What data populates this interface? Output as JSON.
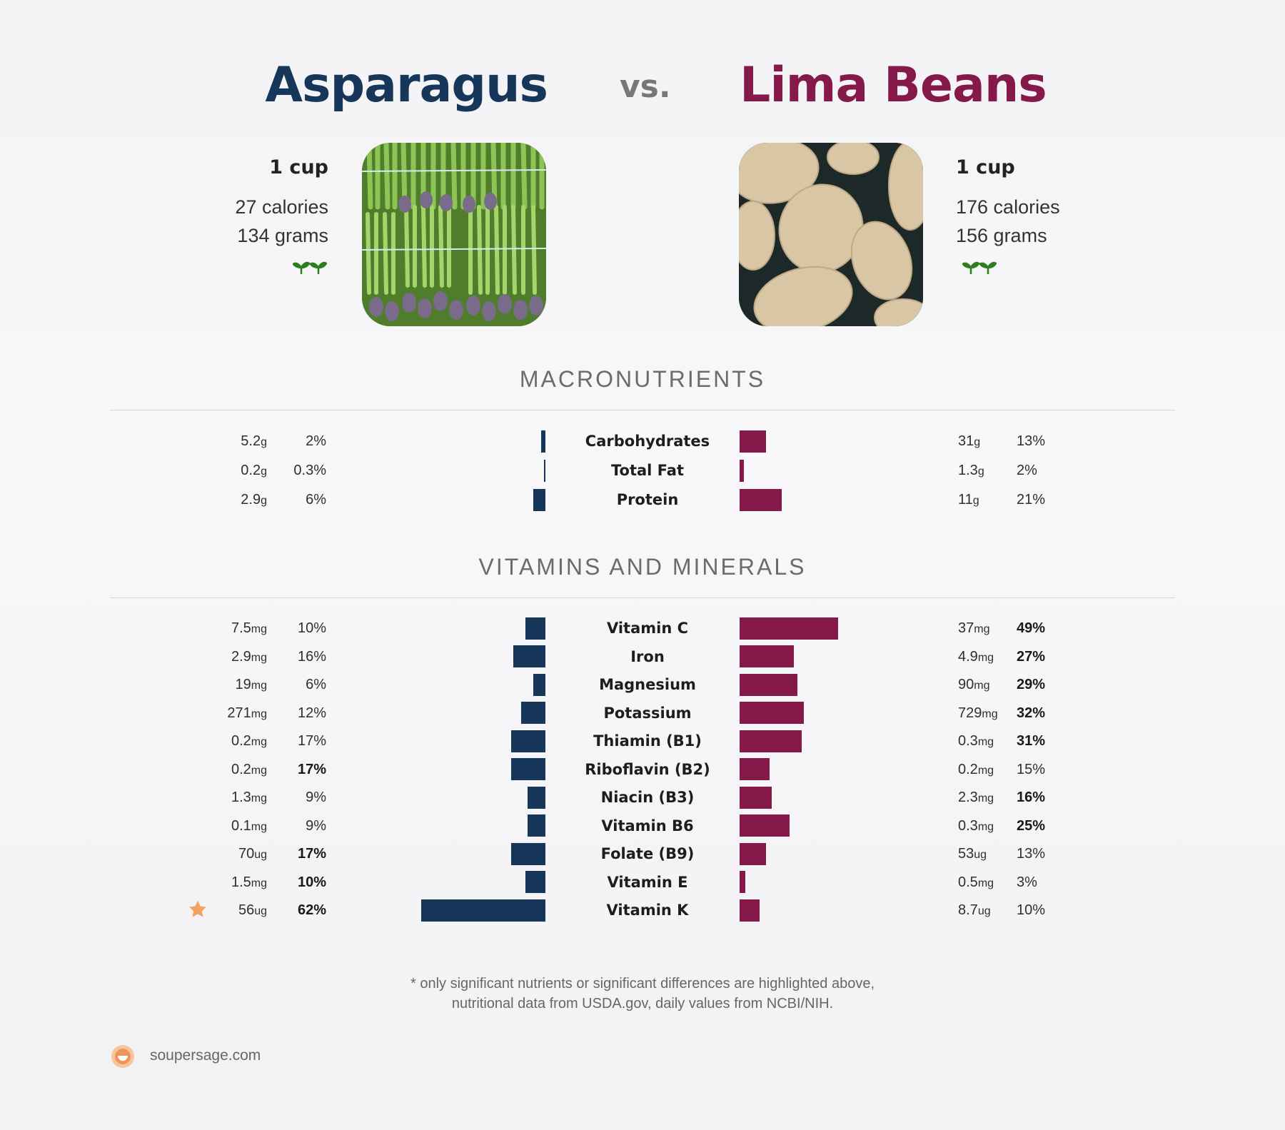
{
  "header": {
    "food_left": "Asparagus",
    "vs": "vs.",
    "food_right": "Lima Beans"
  },
  "left_summary": {
    "serving": "1 cup",
    "calories": "27 calories",
    "weight": "134 grams",
    "icon": "plant-sprouts-icon"
  },
  "right_summary": {
    "serving": "1 cup",
    "calories": "176 calories",
    "weight": "156 grams",
    "icon": "plant-sprouts-icon"
  },
  "colors": {
    "left": "#16365a",
    "right": "#851a4a",
    "star": "#f4a261",
    "sprout": "#2e7d1f"
  },
  "sections": {
    "macros": "MACRONUTRIENTS",
    "vitamins": "VITAMINS AND MINERALS"
  },
  "chart_data": [
    {
      "type": "bar",
      "orientation": "diverging-horizontal",
      "section": "MACRONUTRIENTS",
      "categories": [
        "Carbohydrates",
        "Total Fat",
        "Protein"
      ],
      "series": [
        {
          "name": "Asparagus",
          "amounts": [
            "5.2",
            "0.2",
            "2.9"
          ],
          "units": [
            "g",
            "g",
            "g"
          ],
          "percent_labels": [
            "2%",
            "0.3%",
            "6%"
          ],
          "values": [
            2,
            0.3,
            6
          ],
          "bold": [
            false,
            false,
            false
          ]
        },
        {
          "name": "Lima Beans",
          "amounts": [
            "31",
            "1.3",
            "11"
          ],
          "units": [
            "g",
            "g",
            "g"
          ],
          "percent_labels": [
            "13%",
            "2%",
            "21%"
          ],
          "values": [
            13,
            2,
            21
          ],
          "bold": [
            false,
            false,
            false
          ]
        }
      ]
    },
    {
      "type": "bar",
      "orientation": "diverging-horizontal",
      "section": "VITAMINS AND MINERALS",
      "categories": [
        "Vitamin C",
        "Iron",
        "Magnesium",
        "Potassium",
        "Thiamin (B1)",
        "Riboflavin (B2)",
        "Niacin (B3)",
        "Vitamin B6",
        "Folate (B9)",
        "Vitamin E",
        "Vitamin K"
      ],
      "series": [
        {
          "name": "Asparagus",
          "amounts": [
            "7.5",
            "2.9",
            "19",
            "271",
            "0.2",
            "0.2",
            "1.3",
            "0.1",
            "70",
            "1.5",
            "56"
          ],
          "units": [
            "mg",
            "mg",
            "mg",
            "mg",
            "mg",
            "mg",
            "mg",
            "mg",
            "ug",
            "mg",
            "ug"
          ],
          "percent_labels": [
            "10%",
            "16%",
            "6%",
            "12%",
            "17%",
            "17%",
            "9%",
            "9%",
            "17%",
            "10%",
            "62%"
          ],
          "values": [
            10,
            16,
            6,
            12,
            17,
            17,
            9,
            9,
            17,
            10,
            62
          ],
          "bold": [
            false,
            false,
            false,
            false,
            false,
            true,
            false,
            false,
            true,
            true,
            true
          ],
          "starred": [
            false,
            false,
            false,
            false,
            false,
            false,
            false,
            false,
            false,
            false,
            true
          ]
        },
        {
          "name": "Lima Beans",
          "amounts": [
            "37",
            "4.9",
            "90",
            "729",
            "0.3",
            "0.2",
            "2.3",
            "0.3",
            "53",
            "0.5",
            "8.7"
          ],
          "units": [
            "mg",
            "mg",
            "mg",
            "mg",
            "mg",
            "mg",
            "mg",
            "mg",
            "ug",
            "mg",
            "ug"
          ],
          "percent_labels": [
            "49%",
            "27%",
            "29%",
            "32%",
            "31%",
            "15%",
            "16%",
            "25%",
            "13%",
            "3%",
            "10%"
          ],
          "values": [
            49,
            27,
            29,
            32,
            31,
            15,
            16,
            25,
            13,
            3,
            10
          ],
          "bold": [
            true,
            true,
            true,
            true,
            true,
            false,
            true,
            true,
            false,
            false,
            false
          ]
        }
      ]
    }
  ],
  "footnote": {
    "line1": "* only significant nutrients or significant differences are highlighted above,",
    "line2": "nutritional data from USDA.gov, daily values from NCBI/NIH."
  },
  "site": {
    "name": "soupersage.com",
    "icon": "soupersage-logo-icon"
  }
}
